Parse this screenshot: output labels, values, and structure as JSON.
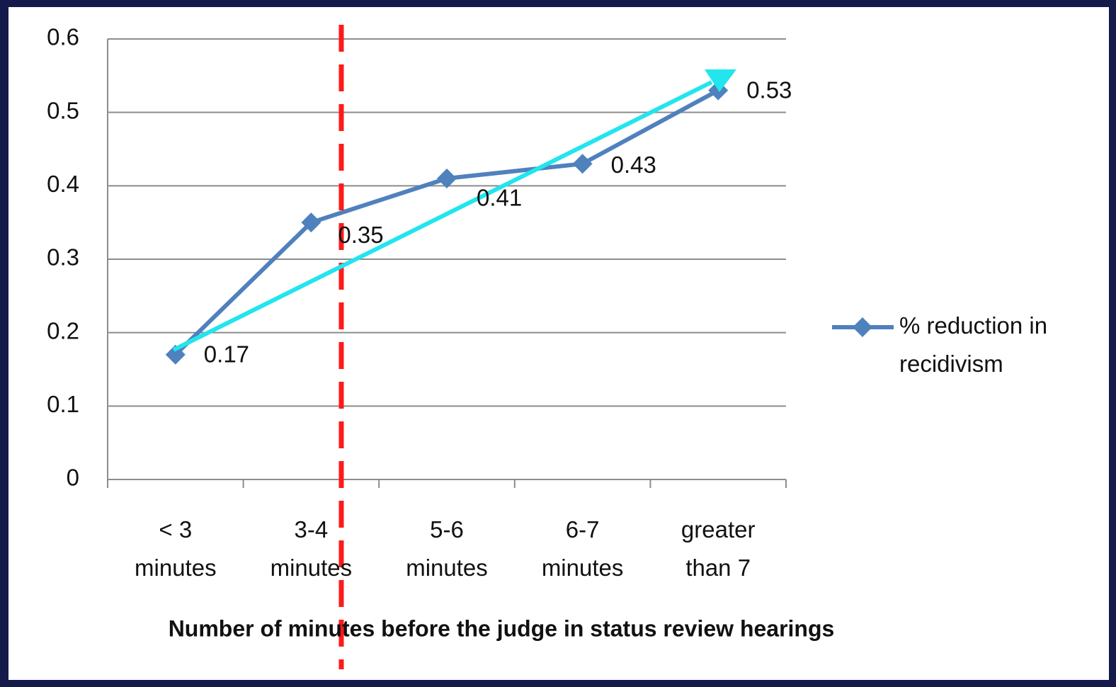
{
  "chart_data": {
    "type": "line",
    "x_label": "Number of minutes before the judge in status review hearings",
    "categories": [
      "< 3\nminutes",
      "3-4\nminutes",
      "5-6\nminutes",
      "6-7\nminutes",
      "greater\nthan 7"
    ],
    "series": [
      {
        "name": "% reduction in\nrecidivism",
        "color": "#4f81bd",
        "values": [
          0.17,
          0.35,
          0.41,
          0.43,
          0.53
        ]
      }
    ],
    "ylim": [
      0,
      0.6
    ],
    "yticks": [
      0,
      0.1,
      0.2,
      0.3,
      0.4,
      0.5,
      0.6
    ],
    "grid": true,
    "legend": "right"
  }
}
